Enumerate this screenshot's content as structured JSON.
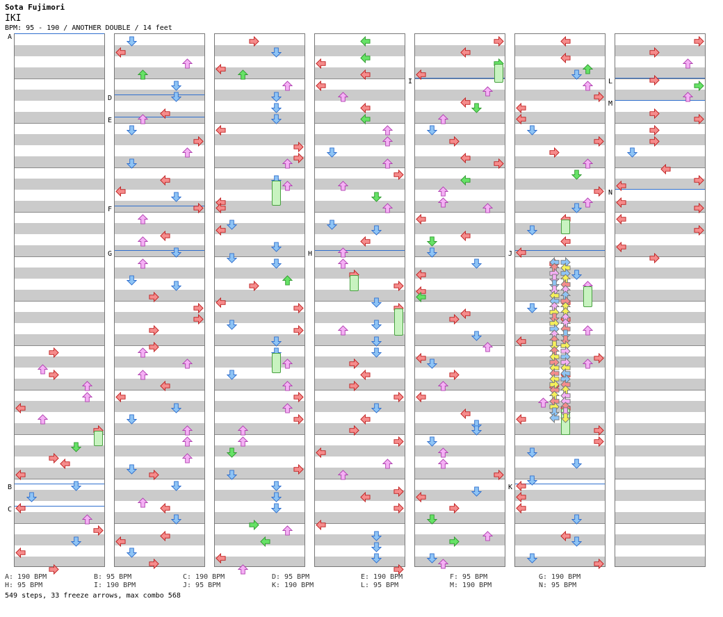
{
  "header": {
    "artist": "Sota Fujimori",
    "title": "IKI",
    "meta": "BPM: 95 - 190 / ANOTHER DOUBLE / 14 feet"
  },
  "colors": {
    "left": "#f58c8c",
    "left_border": "#c02020",
    "down": "#8ec4f5",
    "down_border": "#2f6fce",
    "up": "#f5b0f5",
    "up_border": "#b040b0",
    "right": "#f58c8c",
    "freeze": "#c8f3c0",
    "shock_green": "#66e266",
    "yellow": "#f5f05a",
    "stop_line": "#2f6fce",
    "band": "#cbcbcb"
  },
  "sections": [
    {
      "id": "A",
      "col": 0,
      "m": 0
    },
    {
      "id": "B",
      "col": 0,
      "m": 40.5
    },
    {
      "id": "C",
      "col": 0,
      "m": 42.5
    },
    {
      "id": "D",
      "col": 1,
      "m": 5.5
    },
    {
      "id": "E",
      "col": 1,
      "m": 7.5
    },
    {
      "id": "F",
      "col": 1,
      "m": 15.5
    },
    {
      "id": "G",
      "col": 1,
      "m": 19.5
    },
    {
      "id": "H",
      "col": 3,
      "m": 19.5
    },
    {
      "id": "I",
      "col": 4,
      "m": 4
    },
    {
      "id": "J",
      "col": 5,
      "m": 19.5
    },
    {
      "id": "K",
      "col": 5,
      "m": 40.5
    },
    {
      "id": "L",
      "col": 6,
      "m": 4
    },
    {
      "id": "M",
      "col": 6,
      "m": 6
    },
    {
      "id": "N",
      "col": 6,
      "m": 14
    }
  ],
  "legend": [
    {
      "label": "A: 190 BPM"
    },
    {
      "label": "B: 95 BPM"
    },
    {
      "label": "C: 190 BPM"
    },
    {
      "label": "D: 95 BPM"
    },
    {
      "label": "E: 190 BPM"
    },
    {
      "label": "F: 95 BPM"
    },
    {
      "label": "G: 190 BPM"
    },
    {
      "label": "H: 95 BPM"
    },
    {
      "label": "I: 190 BPM"
    },
    {
      "label": "J: 95 BPM"
    },
    {
      "label": "K: 190 BPM"
    },
    {
      "label": "L: 95 BPM"
    },
    {
      "label": "M: 190 BPM"
    },
    {
      "label": "N: 95 BPM"
    }
  ],
  "summary": "549 steps, 33 freeze arrows, max combo 568"
}
